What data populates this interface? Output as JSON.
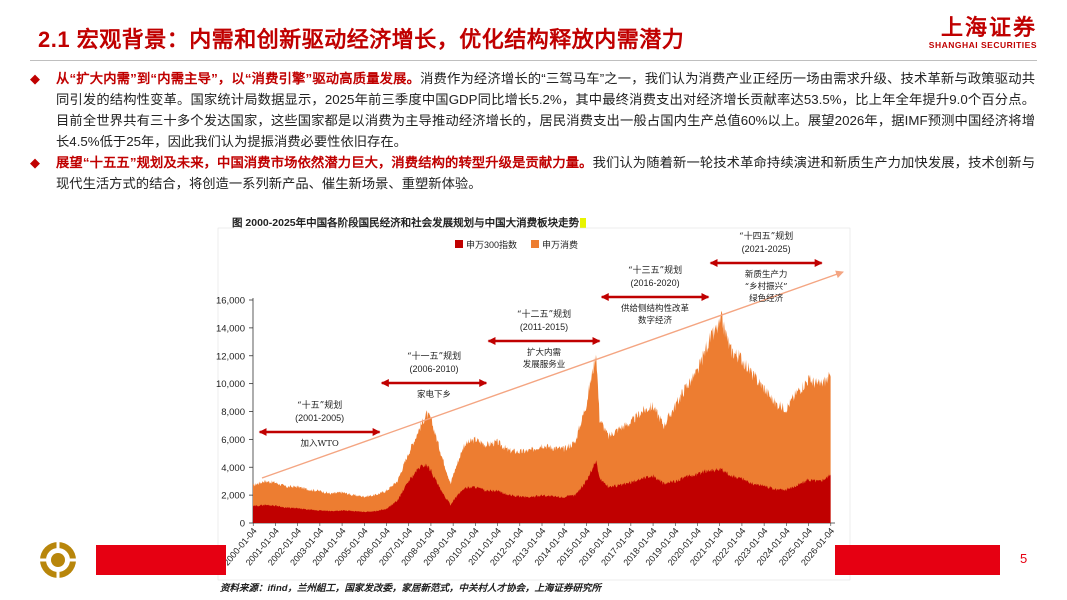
{
  "header": {
    "title": "2.1 宏观背景：内需和创新驱动经济增长，优化结构释放内需潜力",
    "logo_cn": "上海证券",
    "logo_en": "SHANGHAI SECURITIES"
  },
  "bullets": [
    {
      "highlight": "从“扩大内需”到“内需主导”，以“消费引擎”驱动高质量发展。",
      "text": "消费作为经济增长的“三驾马车”之一，我们认为消费产业正经历一场由需求升级、技术革新与政策驱动共同引发的结构性变革。国家统计局数据显示，2025年前三季度中国GDP同比增长5.2%，其中最终消费支出对经济增长贡献率达53.5%，比上年全年提升9.0个百分点。目前全世界共有三十多个发达国家，这些国家都是以消费为主导推动经济增长的，居民消费支出一般占国内生产总值60%以上。展望2026年，据IMF预测中国经济将增长4.5%低于25年，因此我们认为提振消费必要性依旧存在。"
    },
    {
      "highlight": "展望“十五五”规划及未来，中国消费市场依然潜力巨大，消费结构的转型升级是贡献力量。",
      "text": "我们认为随着新一轮技术革命持续演进和新质生产力加快发展，技术创新与现代生活方式的结合，将创造一系列新产品、催生新场景、重塑新体验。"
    }
  ],
  "chart_title": "图 2000-2025年中国各阶段国民经济和社会发展规划与中国大消费板块走势",
  "chart_data": {
    "type": "area",
    "title": "图 2000-2025年中国各阶段国民经济和社会发展规划与中国大消费板块走势",
    "legend_position": "top-center",
    "ylim": [
      0,
      16000
    ],
    "yticks": [
      "0",
      "2,000",
      "4,000",
      "6,000",
      "8,000",
      "10,000",
      "12,000",
      "14,000",
      "16,000"
    ],
    "ytick_values": [
      0,
      2000,
      4000,
      6000,
      8000,
      10000,
      12000,
      14000,
      16000
    ],
    "xticks": [
      "2000-01-04",
      "2001-01-04",
      "2002-01-04",
      "2003-01-04",
      "2004-01-04",
      "2005-01-04",
      "2006-01-04",
      "2007-01-04",
      "2008-01-04",
      "2009-01-04",
      "2010-01-04",
      "2011-01-04",
      "2012-01-04",
      "2013-01-04",
      "2014-01-04",
      "2015-01-04",
      "2016-01-04",
      "2017-01-04",
      "2018-01-04",
      "2019-01-04",
      "2020-01-04",
      "2021-01-04",
      "2022-01-04",
      "2023-01-04",
      "2024-01-04",
      "2025-01-04",
      "2026-01-04"
    ],
    "series": [
      {
        "name": "申万消费",
        "color": "#ed7d31",
        "x": [
          2000,
          2000.5,
          2001,
          2001.5,
          2002,
          2002.5,
          2003,
          2003.5,
          2004,
          2004.5,
          2005,
          2005.5,
          2006,
          2006.5,
          2007,
          2007.5,
          2007.8,
          2008,
          2008.5,
          2008.9,
          2009,
          2009.5,
          2010,
          2010.5,
          2011,
          2011.5,
          2012,
          2012.5,
          2013,
          2013.5,
          2014,
          2014.5,
          2015,
          2015.3,
          2015.45,
          2015.6,
          2016,
          2016.5,
          2017,
          2017.5,
          2018,
          2018.5,
          2019,
          2019.5,
          2020,
          2020.5,
          2021,
          2021.1,
          2021.5,
          2022,
          2022.5,
          2023,
          2023.5,
          2024,
          2024.5,
          2025,
          2025.5,
          2026
        ],
        "values": [
          2700,
          3000,
          2900,
          2600,
          2600,
          2400,
          2300,
          2100,
          2200,
          2000,
          1900,
          2000,
          2300,
          3000,
          5000,
          6800,
          7800,
          7500,
          4800,
          2800,
          3400,
          5600,
          6000,
          5600,
          5800,
          5200,
          5100,
          5200,
          5600,
          5400,
          5300,
          5800,
          8500,
          11000,
          12200,
          7500,
          6200,
          6800,
          7200,
          8000,
          8400,
          7000,
          8400,
          9800,
          10800,
          13000,
          14200,
          14600,
          12400,
          11800,
          10600,
          9700,
          8600,
          8200,
          9400,
          10300,
          9900,
          10500
        ]
      },
      {
        "name": "申万300指数",
        "color": "#c00000",
        "x": [
          2000,
          2000.5,
          2001,
          2001.5,
          2002,
          2002.5,
          2003,
          2003.5,
          2004,
          2004.5,
          2005,
          2005.5,
          2006,
          2006.5,
          2007,
          2007.5,
          2007.8,
          2008,
          2008.5,
          2008.9,
          2009,
          2009.5,
          2010,
          2010.5,
          2011,
          2011.5,
          2012,
          2012.5,
          2013,
          2013.5,
          2014,
          2014.5,
          2015,
          2015.3,
          2015.45,
          2015.6,
          2016,
          2016.5,
          2017,
          2017.5,
          2018,
          2018.5,
          2019,
          2019.5,
          2020,
          2020.5,
          2021,
          2021.1,
          2021.5,
          2022,
          2022.5,
          2023,
          2023.5,
          2024,
          2024.5,
          2025,
          2025.5,
          2026
        ],
        "values": [
          1200,
          1300,
          1250,
          1100,
          1050,
          950,
          900,
          850,
          900,
          850,
          800,
          850,
          1000,
          1600,
          3000,
          4000,
          4200,
          3800,
          2200,
          1300,
          1600,
          2500,
          2600,
          2300,
          2300,
          2000,
          1900,
          1850,
          2000,
          1900,
          1850,
          2000,
          3000,
          4000,
          4500,
          3200,
          2600,
          2700,
          2900,
          3200,
          3400,
          2800,
          3000,
          3300,
          3500,
          3800,
          3800,
          3800,
          3400,
          3200,
          2800,
          2700,
          2400,
          2400,
          2700,
          3100,
          3000,
          3400
        ]
      }
    ],
    "annotations": [
      {
        "period": "“十五”规划",
        "years": "(2001-2005)",
        "policy": "加入WTO",
        "start": 2000.3,
        "end": 2005.7
      },
      {
        "period": "“十一五”规划",
        "years": "(2006-2010)",
        "policy": "家电下乡",
        "start": 2005.8,
        "end": 2010.5
      },
      {
        "period": "“十二五”规划",
        "years": "(2011-2015)",
        "policy": "扩大内需\n发展服务业",
        "start": 2010.6,
        "end": 2015.6
      },
      {
        "period": "“十三五”规划",
        "years": "(2016-2020)",
        "policy": "供给侧结构性改革\n数字经济",
        "start": 2015.7,
        "end": 2020.5
      },
      {
        "period": "“十四五”规划",
        "years": "(2021-2025)",
        "policy": "新质生产力\n“乡村振兴”\n绿色经济",
        "start": 2020.6,
        "end": 2025.6
      }
    ]
  },
  "footer": {
    "page": "5",
    "source": "资料来源：ifind，兰州組工，国家发改委，家居新范式，中关村人才协会，上海证券研究所"
  },
  "colors": {
    "accent": "#c00000",
    "footer_bar": "#e60012",
    "trend_line": "#f4a582"
  }
}
